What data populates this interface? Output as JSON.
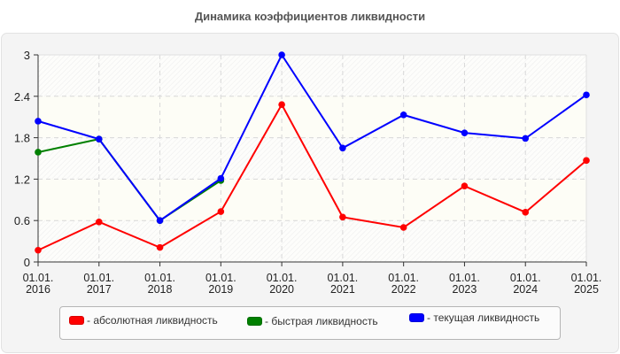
{
  "chart_data": {
    "type": "line",
    "title": "Динамика коэффициентов ликвидности",
    "xlabel": "",
    "ylabel": "",
    "categories": [
      "01.01.2016",
      "01.01.2017",
      "01.01.2018",
      "01.01.2019",
      "01.01.2020",
      "01.01.2021",
      "01.01.2022",
      "01.01.2023",
      "01.01.2024",
      "01.01.2025"
    ],
    "x_tick_labels": [
      [
        "01.01.",
        "2016"
      ],
      [
        "01.01.",
        "2017"
      ],
      [
        "01.01.",
        "2018"
      ],
      [
        "01.01.",
        "2019"
      ],
      [
        "01.01.",
        "2020"
      ],
      [
        "01.01.",
        "2021"
      ],
      [
        "01.01.",
        "2022"
      ],
      [
        "01.01.",
        "2023"
      ],
      [
        "01.01.",
        "2024"
      ],
      [
        "01.01.",
        "2025"
      ]
    ],
    "y_ticks": [
      "0",
      "0.6",
      "1.2",
      "1.8",
      "2.4",
      "3"
    ],
    "ylim": [
      0,
      3
    ],
    "grid": true,
    "legend_position": "bottom",
    "series": [
      {
        "name": "- абсолютная ликвидность",
        "color": "#ff0000",
        "values": [
          0.17,
          0.58,
          0.21,
          0.73,
          2.28,
          0.65,
          0.5,
          1.1,
          0.72,
          1.47
        ]
      },
      {
        "name": "- быстрая ликвидность",
        "color": "#008000",
        "values": [
          1.59,
          1.78,
          0.6,
          1.18,
          null,
          null,
          null,
          null,
          null,
          null
        ]
      },
      {
        "name": "- текущая ликвидность",
        "color": "#0000ff",
        "values": [
          2.04,
          1.78,
          0.6,
          1.21,
          3.0,
          1.65,
          2.13,
          1.87,
          1.79,
          2.42
        ]
      }
    ]
  }
}
